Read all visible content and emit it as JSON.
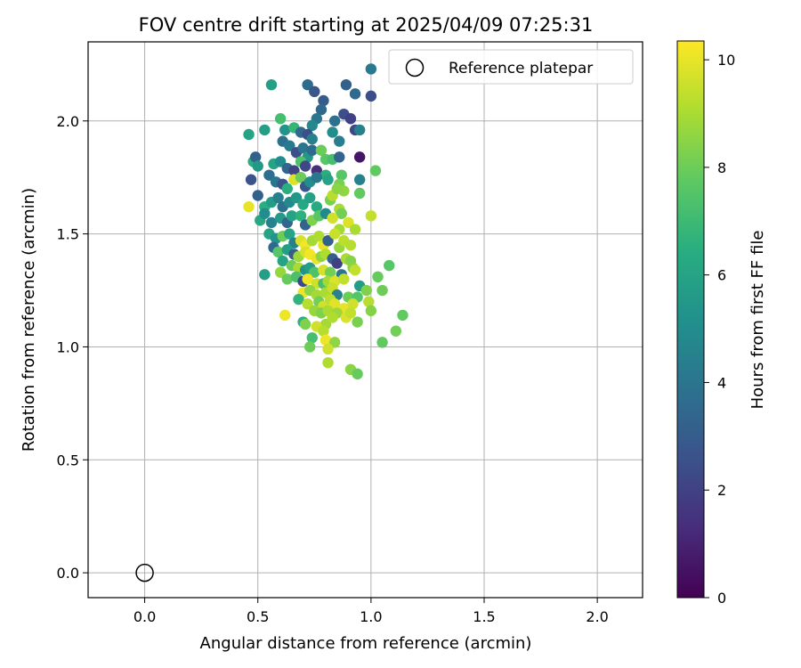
{
  "chart_data": {
    "type": "scatter",
    "title": "FOV centre drift starting at 2025/04/09 07:25:31",
    "xlabel": "Angular distance from reference (arcmin)",
    "ylabel": "Rotation from reference (arcmin)",
    "xlim": [
      -0.25,
      2.2
    ],
    "ylim": [
      -0.11,
      2.35
    ],
    "x_ticks": [
      0.0,
      0.5,
      1.0,
      1.5,
      2.0
    ],
    "y_ticks": [
      0.0,
      0.5,
      1.0,
      1.5,
      2.0
    ],
    "x_tick_labels": [
      "0.0",
      "0.5",
      "1.0",
      "1.5",
      "2.0"
    ],
    "y_tick_labels": [
      "0.0",
      "0.5",
      "1.0",
      "1.5",
      "2.0"
    ],
    "grid": true,
    "legend": {
      "position": "upper-right",
      "entries": [
        "Reference platepar"
      ]
    },
    "reference_point": {
      "name": "Reference platepar",
      "x": 0.0,
      "y": 0.0
    },
    "colorbar": {
      "label": "Hours from first FF file",
      "colormap": "viridis",
      "range": [
        0,
        10.35
      ],
      "ticks": [
        0,
        2,
        4,
        6,
        8,
        10
      ],
      "tick_labels": [
        "0",
        "2",
        "4",
        "6",
        "8",
        "10"
      ]
    },
    "series": [
      {
        "type": "scatter",
        "color_by": "hours",
        "points": [
          [
            0.56,
            2.16,
            5.8
          ],
          [
            0.72,
            2.16,
            3.6
          ],
          [
            0.75,
            2.13,
            2.8
          ],
          [
            0.79,
            2.09,
            3.0
          ],
          [
            0.93,
            2.12,
            3.5
          ],
          [
            0.89,
            2.16,
            3.2
          ],
          [
            1.0,
            2.23,
            4.2
          ],
          [
            1.0,
            2.11,
            2.5
          ],
          [
            0.78,
            2.05,
            3.5
          ],
          [
            0.76,
            2.01,
            4.0
          ],
          [
            0.74,
            1.98,
            4.8
          ],
          [
            0.84,
            2.0,
            3.8
          ],
          [
            0.88,
            2.03,
            2.5
          ],
          [
            0.91,
            2.01,
            2.0
          ],
          [
            0.93,
            1.96,
            2.2
          ],
          [
            0.95,
            1.96,
            4.5
          ],
          [
            0.6,
            2.01,
            7.2
          ],
          [
            0.53,
            1.96,
            5.8
          ],
          [
            0.46,
            1.94,
            6.0
          ],
          [
            0.62,
            1.96,
            5.3
          ],
          [
            0.66,
            1.97,
            6.8
          ],
          [
            0.69,
            1.95,
            3.5
          ],
          [
            0.72,
            1.94,
            2.5
          ],
          [
            0.74,
            1.92,
            4.5
          ],
          [
            0.83,
            1.95,
            5.0
          ],
          [
            0.86,
            1.91,
            4.4
          ],
          [
            0.61,
            1.91,
            3.8
          ],
          [
            0.64,
            1.89,
            4.2
          ],
          [
            0.67,
            1.86,
            2.5
          ],
          [
            0.7,
            1.88,
            4.0
          ],
          [
            0.72,
            1.84,
            5.5
          ],
          [
            0.74,
            1.87,
            3.6
          ],
          [
            0.78,
            1.87,
            8.0
          ],
          [
            0.8,
            1.83,
            7.6
          ],
          [
            0.83,
            1.83,
            7.2
          ],
          [
            0.86,
            1.84,
            3.3
          ],
          [
            0.95,
            1.84,
            0.6
          ],
          [
            0.48,
            1.82,
            6.5
          ],
          [
            0.49,
            1.84,
            3.2
          ],
          [
            0.5,
            1.8,
            5.5
          ],
          [
            0.57,
            1.81,
            6.0
          ],
          [
            0.6,
            1.82,
            5.0
          ],
          [
            0.63,
            1.79,
            3.4
          ],
          [
            0.66,
            1.78,
            2.1
          ],
          [
            0.69,
            1.82,
            7.4
          ],
          [
            0.71,
            1.8,
            2.2
          ],
          [
            0.76,
            1.78,
            1.4
          ],
          [
            0.8,
            1.76,
            6.5
          ],
          [
            0.87,
            1.76,
            7.6
          ],
          [
            1.02,
            1.78,
            7.8
          ],
          [
            0.47,
            1.74,
            2.6
          ],
          [
            0.55,
            1.76,
            3.7
          ],
          [
            0.58,
            1.73,
            4.0
          ],
          [
            0.61,
            1.72,
            2.6
          ],
          [
            0.63,
            1.7,
            6.5
          ],
          [
            0.66,
            1.74,
            9.8
          ],
          [
            0.69,
            1.75,
            8.0
          ],
          [
            0.71,
            1.71,
            2.8
          ],
          [
            0.73,
            1.73,
            5.0
          ],
          [
            0.76,
            1.75,
            4.1
          ],
          [
            0.81,
            1.74,
            6.0
          ],
          [
            0.86,
            1.72,
            8.2
          ],
          [
            0.88,
            1.69,
            8.6
          ],
          [
            0.95,
            1.74,
            4.5
          ],
          [
            0.95,
            1.68,
            7.8
          ],
          [
            0.5,
            1.67,
            3.2
          ],
          [
            0.53,
            1.62,
            6.5
          ],
          [
            0.56,
            1.64,
            5.7
          ],
          [
            0.59,
            1.66,
            4.5
          ],
          [
            0.61,
            1.62,
            3.8
          ],
          [
            0.64,
            1.64,
            4.9
          ],
          [
            0.67,
            1.66,
            5.5
          ],
          [
            0.7,
            1.63,
            6.2
          ],
          [
            0.73,
            1.66,
            5.9
          ],
          [
            0.76,
            1.62,
            6.3
          ],
          [
            0.82,
            1.65,
            8.2
          ],
          [
            0.83,
            1.67,
            9.2
          ],
          [
            0.86,
            1.61,
            9.0
          ],
          [
            0.85,
            1.7,
            8.5
          ],
          [
            0.87,
            1.59,
            8.1
          ],
          [
            0.46,
            1.62,
            10.0
          ],
          [
            0.51,
            1.56,
            6.2
          ],
          [
            0.53,
            1.59,
            5.0
          ],
          [
            0.56,
            1.55,
            4.6
          ],
          [
            0.6,
            1.57,
            5.6
          ],
          [
            0.63,
            1.55,
            3.4
          ],
          [
            0.65,
            1.58,
            6.0
          ],
          [
            0.69,
            1.58,
            6.6
          ],
          [
            0.71,
            1.54,
            3.3
          ],
          [
            0.74,
            1.56,
            8.3
          ],
          [
            0.77,
            1.58,
            7.6
          ],
          [
            0.8,
            1.59,
            4.9
          ],
          [
            0.83,
            1.57,
            9.6
          ],
          [
            0.86,
            1.52,
            8.9
          ],
          [
            0.9,
            1.55,
            9.8
          ],
          [
            0.93,
            1.52,
            9.0
          ],
          [
            1.0,
            1.58,
            9.4
          ],
          [
            0.55,
            1.5,
            6.0
          ],
          [
            0.58,
            1.48,
            5.3
          ],
          [
            0.61,
            1.49,
            8.0
          ],
          [
            0.64,
            1.5,
            6.1
          ],
          [
            0.66,
            1.46,
            4.5
          ],
          [
            0.69,
            1.47,
            9.7
          ],
          [
            0.71,
            1.45,
            10.2
          ],
          [
            0.74,
            1.47,
            8.9
          ],
          [
            0.77,
            1.49,
            9.1
          ],
          [
            0.79,
            1.45,
            10.0
          ],
          [
            0.81,
            1.47,
            3.2
          ],
          [
            0.84,
            1.5,
            9.5
          ],
          [
            0.86,
            1.44,
            8.7
          ],
          [
            0.88,
            1.47,
            9.3
          ],
          [
            0.91,
            1.45,
            9.2
          ],
          [
            0.57,
            1.44,
            3.5
          ],
          [
            0.59,
            1.42,
            7.6
          ],
          [
            0.63,
            1.43,
            5.8
          ],
          [
            0.66,
            1.41,
            3.0
          ],
          [
            0.68,
            1.4,
            8.8
          ],
          [
            0.71,
            1.42,
            9.7
          ],
          [
            0.73,
            1.41,
            10.2
          ],
          [
            0.76,
            1.39,
            10.0
          ],
          [
            0.78,
            1.4,
            8.5
          ],
          [
            0.8,
            1.41,
            9.1
          ],
          [
            0.83,
            1.39,
            3.2
          ],
          [
            0.85,
            1.37,
            2.0
          ],
          [
            0.89,
            1.39,
            9.0
          ],
          [
            0.91,
            1.38,
            8.4
          ],
          [
            0.61,
            1.38,
            6.0
          ],
          [
            0.65,
            1.36,
            8.0
          ],
          [
            0.68,
            1.35,
            9.0
          ],
          [
            0.71,
            1.34,
            5.2
          ],
          [
            0.73,
            1.35,
            5.8
          ],
          [
            0.75,
            1.33,
            7.4
          ],
          [
            0.79,
            1.34,
            9.7
          ],
          [
            0.82,
            1.33,
            8.1
          ],
          [
            0.87,
            1.32,
            4.0
          ],
          [
            0.92,
            1.35,
            8.5
          ],
          [
            0.93,
            1.34,
            9.4
          ],
          [
            1.08,
            1.36,
            7.6
          ],
          [
            0.53,
            1.32,
            5.8
          ],
          [
            0.6,
            1.33,
            8.7
          ],
          [
            0.63,
            1.3,
            7.9
          ],
          [
            0.67,
            1.31,
            7.3
          ],
          [
            0.7,
            1.29,
            2.2
          ],
          [
            0.72,
            1.3,
            10.1
          ],
          [
            0.76,
            1.28,
            9.6
          ],
          [
            0.79,
            1.28,
            7.2
          ],
          [
            0.81,
            1.29,
            8.9
          ],
          [
            0.84,
            1.29,
            9.8
          ],
          [
            0.88,
            1.3,
            9.4
          ],
          [
            0.95,
            1.27,
            5.7
          ],
          [
            1.03,
            1.31,
            7.9
          ],
          [
            0.7,
            1.24,
            10.1
          ],
          [
            0.73,
            1.25,
            8.5
          ],
          [
            0.76,
            1.23,
            8.9
          ],
          [
            0.8,
            1.24,
            9.0
          ],
          [
            0.83,
            1.26,
            9.5
          ],
          [
            0.85,
            1.23,
            4.6
          ],
          [
            0.9,
            1.22,
            8.0
          ],
          [
            0.94,
            1.22,
            7.5
          ],
          [
            0.98,
            1.25,
            8.3
          ],
          [
            1.05,
            1.25,
            8.0
          ],
          [
            0.68,
            1.21,
            6.7
          ],
          [
            0.72,
            1.19,
            9.2
          ],
          [
            0.77,
            1.2,
            8.1
          ],
          [
            0.79,
            1.18,
            9.6
          ],
          [
            0.82,
            1.21,
            9.3
          ],
          [
            0.84,
            1.19,
            9.9
          ],
          [
            0.88,
            1.17,
            10.0
          ],
          [
            0.92,
            1.19,
            9.6
          ],
          [
            0.99,
            1.2,
            9.2
          ],
          [
            0.75,
            1.16,
            8.7
          ],
          [
            0.78,
            1.15,
            8.3
          ],
          [
            0.81,
            1.16,
            9.0
          ],
          [
            0.85,
            1.15,
            8.8
          ],
          [
            0.89,
            1.13,
            9.8
          ],
          [
            0.91,
            1.15,
            9.4
          ],
          [
            1.0,
            1.16,
            8.4
          ],
          [
            1.14,
            1.14,
            7.8
          ],
          [
            0.62,
            1.14,
            10.1
          ],
          [
            0.7,
            1.11,
            6.6
          ],
          [
            0.71,
            1.1,
            8.3
          ],
          [
            0.8,
            1.1,
            8.9
          ],
          [
            0.83,
            1.13,
            9.1
          ],
          [
            0.94,
            1.11,
            8.2
          ],
          [
            0.76,
            1.09,
            9.6
          ],
          [
            0.79,
            1.07,
            9.2
          ],
          [
            1.11,
            1.07,
            8.1
          ],
          [
            0.74,
            1.04,
            7.2
          ],
          [
            0.8,
            1.03,
            10.1
          ],
          [
            0.84,
            1.02,
            8.6
          ],
          [
            1.05,
            1.02,
            7.8
          ],
          [
            0.73,
            1.0,
            8.0
          ],
          [
            0.81,
            0.99,
            9.6
          ],
          [
            0.81,
            0.93,
            9.1
          ],
          [
            0.91,
            0.9,
            8.5
          ],
          [
            0.94,
            0.88,
            7.9
          ]
        ]
      }
    ]
  }
}
